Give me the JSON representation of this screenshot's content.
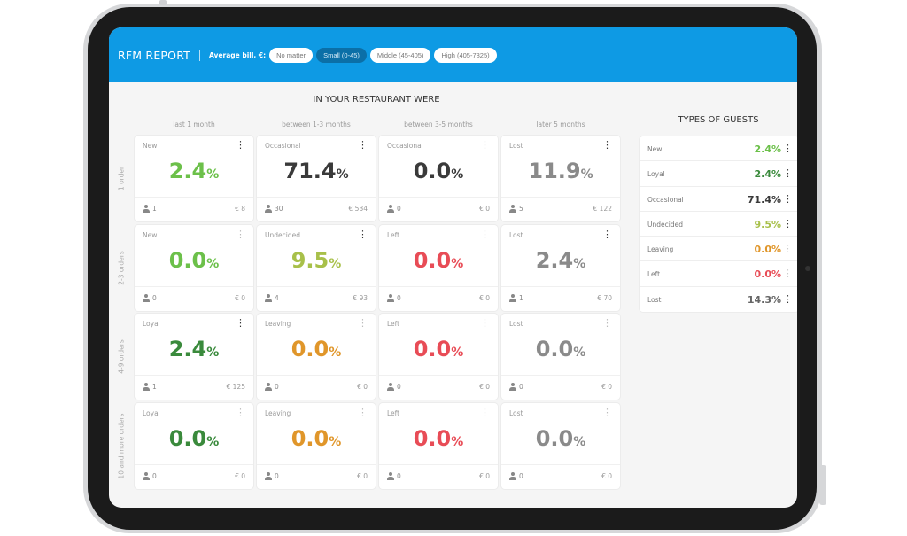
{
  "header": {
    "title": "RFM REPORT",
    "filter_label": "Average bill, €:",
    "filters": [
      {
        "label": "No matter",
        "active": false
      },
      {
        "label": "Small (0-45)",
        "active": true
      },
      {
        "label": "Middle (45-405)",
        "active": false
      },
      {
        "label": "High (405-7825)",
        "active": false
      }
    ]
  },
  "matrix": {
    "title": "IN YOUR RESTAURANT WERE",
    "columns": [
      "last 1 month",
      "between 1-3 months",
      "between 3-5 months",
      "later 5 months"
    ],
    "rows": [
      "1 order",
      "2-3 orders",
      "4-9 orders",
      "10 and more orders"
    ],
    "cells": [
      [
        {
          "segment": "New",
          "value": "2.4",
          "unit": "%",
          "guests": "1",
          "amount": "€ 8",
          "color": "#6cc04a",
          "menu_active": true
        },
        {
          "segment": "Occasional",
          "value": "71.4",
          "unit": "%",
          "guests": "30",
          "amount": "€ 534",
          "color": "#3a3a3a",
          "menu_active": true
        },
        {
          "segment": "Occasional",
          "value": "0.0",
          "unit": "%",
          "guests": "0",
          "amount": "€ 0",
          "color": "#3a3a3a",
          "menu_active": false
        },
        {
          "segment": "Lost",
          "value": "11.9",
          "unit": "%",
          "guests": "5",
          "amount": "€ 122",
          "color": "#8a8a8a",
          "menu_active": true
        }
      ],
      [
        {
          "segment": "New",
          "value": "0.0",
          "unit": "%",
          "guests": "0",
          "amount": "€ 0",
          "color": "#6cc04a",
          "menu_active": false
        },
        {
          "segment": "Undecided",
          "value": "9.5",
          "unit": "%",
          "guests": "4",
          "amount": "€ 93",
          "color": "#a8c04a",
          "menu_active": true
        },
        {
          "segment": "Left",
          "value": "0.0",
          "unit": "%",
          "guests": "0",
          "amount": "€ 0",
          "color": "#e84c56",
          "menu_active": false
        },
        {
          "segment": "Lost",
          "value": "2.4",
          "unit": "%",
          "guests": "1",
          "amount": "€ 70",
          "color": "#8a8a8a",
          "menu_active": true
        }
      ],
      [
        {
          "segment": "Loyal",
          "value": "2.4",
          "unit": "%",
          "guests": "1",
          "amount": "€ 125",
          "color": "#3a8a3c",
          "menu_active": true
        },
        {
          "segment": "Leaving",
          "value": "0.0",
          "unit": "%",
          "guests": "0",
          "amount": "€ 0",
          "color": "#e0962a",
          "menu_active": false
        },
        {
          "segment": "Left",
          "value": "0.0",
          "unit": "%",
          "guests": "0",
          "amount": "€ 0",
          "color": "#e84c56",
          "menu_active": false
        },
        {
          "segment": "Lost",
          "value": "0.0",
          "unit": "%",
          "guests": "0",
          "amount": "€ 0",
          "color": "#8a8a8a",
          "menu_active": false
        }
      ],
      [
        {
          "segment": "Loyal",
          "value": "0.0",
          "unit": "%",
          "guests": "0",
          "amount": "€ 0",
          "color": "#3a8a3c",
          "menu_active": false
        },
        {
          "segment": "Leaving",
          "value": "0.0",
          "unit": "%",
          "guests": "0",
          "amount": "€ 0",
          "color": "#e0962a",
          "menu_active": false
        },
        {
          "segment": "Left",
          "value": "0.0",
          "unit": "%",
          "guests": "0",
          "amount": "€ 0",
          "color": "#e84c56",
          "menu_active": false
        },
        {
          "segment": "Lost",
          "value": "0.0",
          "unit": "%",
          "guests": "0",
          "amount": "€ 0",
          "color": "#8a8a8a",
          "menu_active": false
        }
      ]
    ]
  },
  "types": {
    "title": "TYPES OF GUESTS",
    "items": [
      {
        "label": "New",
        "value": "2.4%",
        "color": "#6cc04a",
        "menu_active": true
      },
      {
        "label": "Loyal",
        "value": "2.4%",
        "color": "#3a8a3c",
        "menu_active": true
      },
      {
        "label": "Occasional",
        "value": "71.4%",
        "color": "#3a3a3a",
        "menu_active": true
      },
      {
        "label": "Undecided",
        "value": "9.5%",
        "color": "#a8c04a",
        "menu_active": true
      },
      {
        "label": "Leaving",
        "value": "0.0%",
        "color": "#e0962a",
        "menu_active": false
      },
      {
        "label": "Left",
        "value": "0.0%",
        "color": "#e84c56",
        "menu_active": false
      },
      {
        "label": "Lost",
        "value": "14.3%",
        "color": "#666666",
        "menu_active": true
      }
    ]
  },
  "icons": {
    "menu": "kebab-menu-icon",
    "guests": "user-icon"
  }
}
